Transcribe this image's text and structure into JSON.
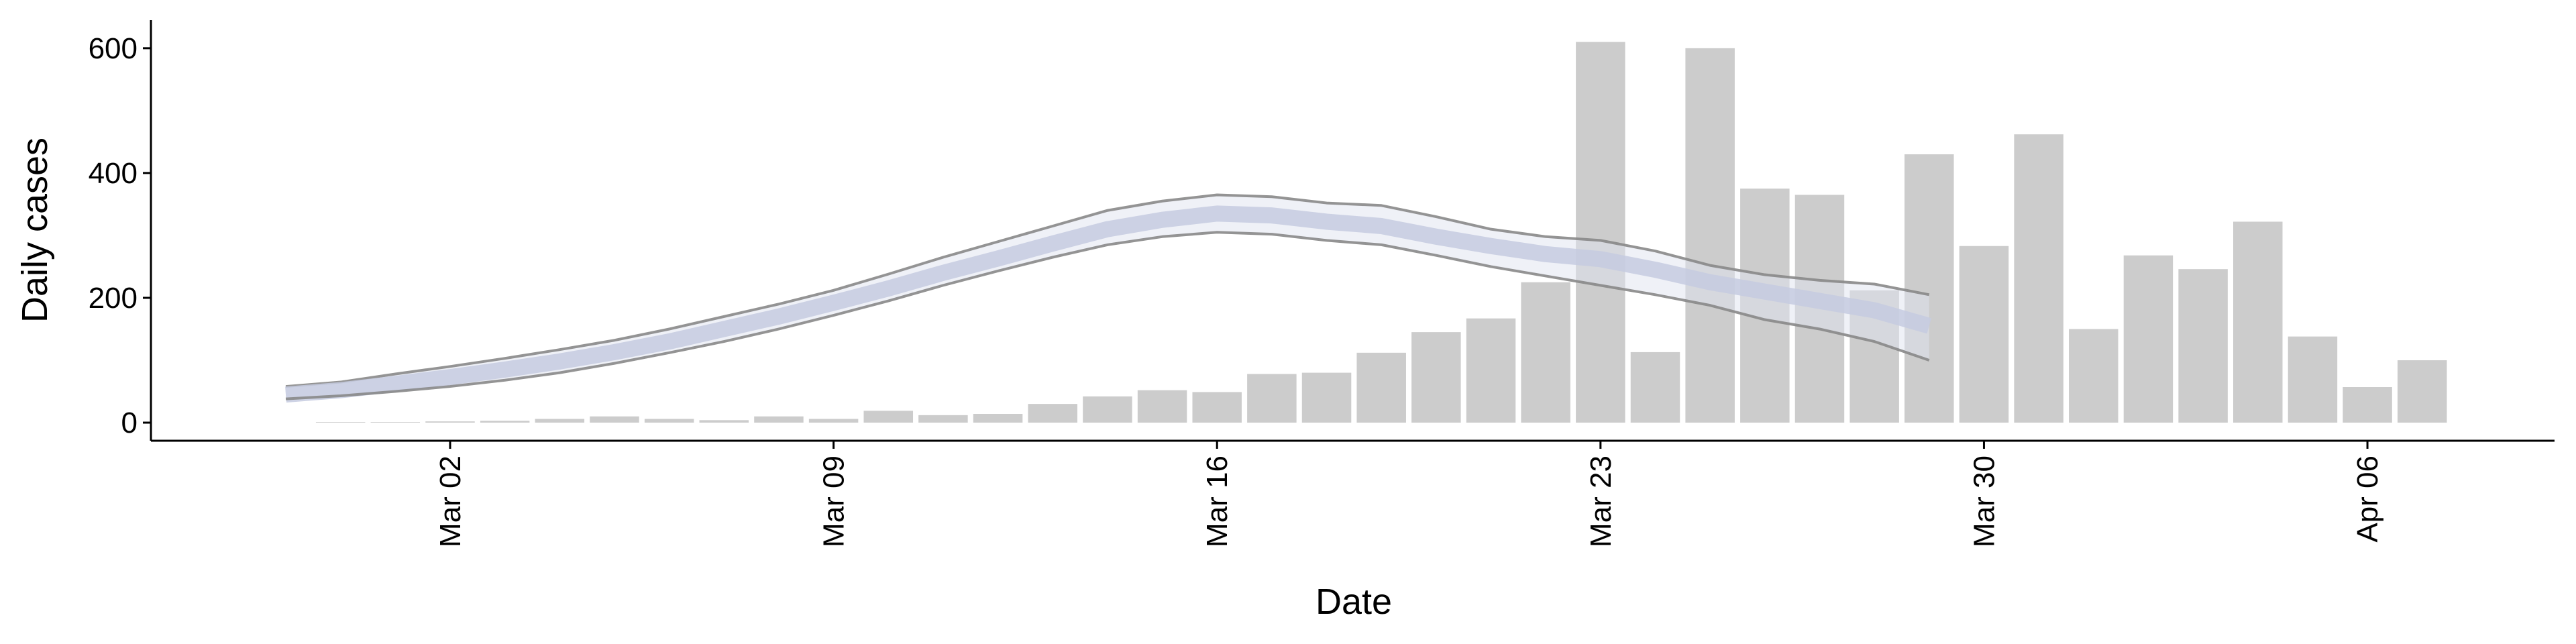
{
  "chart_data": {
    "type": "bar",
    "x_label": "Date",
    "y_label": "Daily cases",
    "categories": [
      null,
      null,
      null,
      "Mar 02",
      null,
      null,
      null,
      null,
      null,
      null,
      "Mar 09",
      null,
      null,
      null,
      null,
      null,
      null,
      "Mar 16",
      null,
      null,
      null,
      null,
      null,
      null,
      "Mar 23",
      null,
      null,
      null,
      null,
      null,
      null,
      "Mar 30",
      null,
      null,
      null,
      null,
      null,
      null,
      "Apr 06",
      null
    ],
    "series": [
      {
        "type": "bar",
        "color": "#cccccc",
        "values": [
          null,
          1,
          1,
          2,
          3,
          6,
          10,
          6,
          4,
          10,
          6,
          19,
          12,
          14,
          30,
          42,
          52,
          49,
          78,
          80,
          112,
          145,
          167,
          225,
          610,
          113,
          600,
          375,
          365,
          212,
          430,
          283,
          462,
          150,
          268,
          246,
          322,
          138,
          57,
          100
        ]
      },
      {
        "type": "line",
        "color": "#888888",
        "values": [
          58,
          65,
          78,
          90,
          103,
          117,
          132,
          150,
          170,
          190,
          212,
          238,
          265,
          290,
          315,
          340,
          355,
          365,
          362,
          352,
          348,
          330,
          310,
          298,
          292,
          275,
          252,
          237,
          228,
          222,
          205,
          null,
          null,
          null,
          null,
          null,
          null,
          null,
          null,
          null
        ]
      },
      {
        "type": "line",
        "color": "#c5cbe0",
        "width": 8,
        "values": [
          45,
          52,
          62,
          73,
          85,
          98,
          113,
          130,
          150,
          170,
          192,
          215,
          240,
          263,
          287,
          310,
          325,
          335,
          332,
          322,
          315,
          298,
          283,
          270,
          262,
          245,
          225,
          210,
          195,
          180,
          155,
          null,
          null,
          null,
          null,
          null,
          null,
          null,
          null,
          null
        ]
      },
      {
        "type": "line",
        "color": "#888888",
        "values": [
          38,
          43,
          50,
          58,
          68,
          80,
          95,
          112,
          130,
          150,
          172,
          195,
          220,
          243,
          265,
          285,
          298,
          305,
          302,
          292,
          285,
          268,
          250,
          235,
          220,
          205,
          188,
          165,
          150,
          130,
          100,
          null,
          null,
          null,
          null,
          null,
          null,
          null,
          null,
          null
        ]
      }
    ],
    "ylim": [
      -29,
      645
    ],
    "yticks": [
      0,
      200,
      400,
      600
    ]
  }
}
